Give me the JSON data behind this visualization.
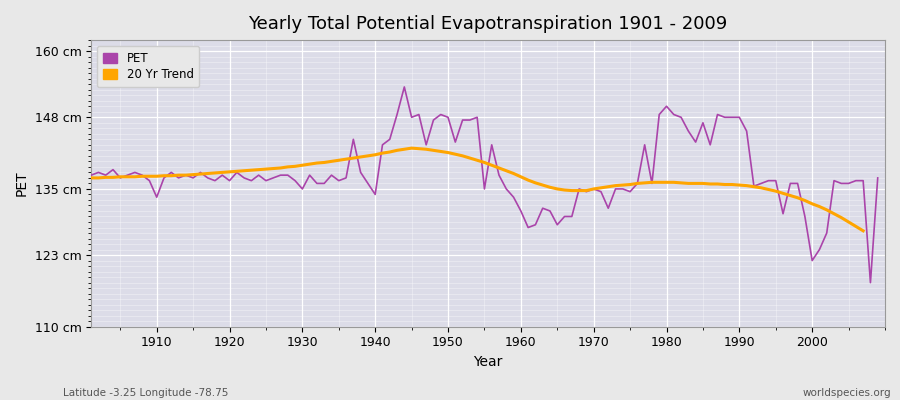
{
  "title": "Yearly Total Potential Evapotranspiration 1901 - 2009",
  "xlabel": "Year",
  "ylabel": "PET",
  "subtitle_left": "Latitude -3.25 Longitude -78.75",
  "subtitle_right": "worldspecies.org",
  "pet_color": "#AA44AA",
  "trend_color": "#FFA500",
  "bg_color": "#E8E8E8",
  "plot_bg_color": "#DCDCE8",
  "ylim": [
    110,
    162
  ],
  "yticks": [
    110,
    123,
    135,
    148,
    160
  ],
  "ytick_labels": [
    "110 cm",
    "123 cm",
    "135 cm",
    "148 cm",
    "160 cm"
  ],
  "xlim": [
    1901,
    2010
  ],
  "xticks": [
    1910,
    1920,
    1930,
    1940,
    1950,
    1960,
    1970,
    1980,
    1990,
    2000
  ],
  "years": [
    1901,
    1902,
    1903,
    1904,
    1905,
    1906,
    1907,
    1908,
    1909,
    1910,
    1911,
    1912,
    1913,
    1914,
    1915,
    1916,
    1917,
    1918,
    1919,
    1920,
    1921,
    1922,
    1923,
    1924,
    1925,
    1926,
    1927,
    1928,
    1929,
    1930,
    1931,
    1932,
    1933,
    1934,
    1935,
    1936,
    1937,
    1938,
    1939,
    1940,
    1941,
    1942,
    1943,
    1944,
    1945,
    1946,
    1947,
    1948,
    1949,
    1950,
    1951,
    1952,
    1953,
    1954,
    1955,
    1956,
    1957,
    1958,
    1959,
    1960,
    1961,
    1962,
    1963,
    1964,
    1965,
    1966,
    1967,
    1968,
    1969,
    1970,
    1971,
    1972,
    1973,
    1974,
    1975,
    1976,
    1977,
    1978,
    1979,
    1980,
    1981,
    1982,
    1983,
    1984,
    1985,
    1986,
    1987,
    1988,
    1989,
    1990,
    1991,
    1992,
    1993,
    1994,
    1995,
    1996,
    1997,
    1998,
    1999,
    2000,
    2001,
    2002,
    2003,
    2004,
    2005,
    2006,
    2007,
    2008,
    2009
  ],
  "pet_values": [
    137.5,
    138.0,
    137.5,
    138.5,
    137.0,
    137.5,
    138.0,
    137.5,
    136.5,
    133.5,
    137.0,
    138.0,
    137.0,
    137.5,
    137.0,
    138.0,
    137.0,
    136.5,
    137.5,
    136.5,
    138.0,
    137.0,
    136.5,
    137.5,
    136.5,
    137.0,
    137.5,
    137.5,
    136.5,
    135.0,
    137.5,
    136.0,
    136.0,
    137.5,
    136.5,
    137.0,
    144.0,
    138.0,
    136.0,
    134.0,
    143.0,
    144.0,
    148.5,
    153.5,
    148.0,
    148.5,
    143.0,
    147.5,
    148.5,
    148.0,
    143.5,
    147.5,
    147.5,
    148.0,
    135.0,
    143.0,
    137.5,
    135.0,
    133.5,
    131.0,
    128.0,
    128.5,
    131.5,
    131.0,
    128.5,
    130.0,
    130.0,
    135.0,
    134.5,
    135.0,
    134.5,
    131.5,
    135.0,
    135.0,
    134.5,
    136.0,
    143.0,
    136.0,
    148.5,
    150.0,
    148.5,
    148.0,
    145.5,
    143.5,
    147.0,
    143.0,
    148.5,
    148.0,
    148.0,
    148.0,
    145.5,
    135.5,
    136.0,
    136.5,
    136.5,
    130.5,
    136.0,
    136.0,
    130.0,
    122.0,
    124.0,
    127.0,
    136.5,
    136.0,
    136.0,
    136.5,
    136.5,
    118.0,
    137.0
  ],
  "trend_values": [
    137.0,
    137.0,
    137.1,
    137.1,
    137.2,
    137.2,
    137.2,
    137.3,
    137.3,
    137.3,
    137.4,
    137.4,
    137.5,
    137.5,
    137.6,
    137.7,
    137.8,
    137.9,
    138.0,
    138.1,
    138.2,
    138.3,
    138.4,
    138.5,
    138.6,
    138.7,
    138.8,
    139.0,
    139.1,
    139.3,
    139.5,
    139.7,
    139.8,
    140.0,
    140.2,
    140.4,
    140.6,
    140.8,
    141.0,
    141.2,
    141.5,
    141.7,
    142.0,
    142.2,
    142.4,
    142.3,
    142.2,
    142.0,
    141.8,
    141.6,
    141.3,
    141.0,
    140.6,
    140.2,
    139.8,
    139.3,
    138.8,
    138.3,
    137.8,
    137.2,
    136.6,
    136.1,
    135.7,
    135.3,
    135.0,
    134.8,
    134.7,
    134.7,
    134.7,
    135.0,
    135.2,
    135.4,
    135.6,
    135.7,
    135.8,
    136.0,
    136.1,
    136.2,
    136.2,
    136.2,
    136.2,
    136.1,
    136.0,
    136.0,
    136.0,
    135.9,
    135.9,
    135.8,
    135.8,
    135.7,
    135.6,
    135.4,
    135.2,
    134.9,
    134.6,
    134.2,
    133.8,
    133.4,
    132.9,
    132.3,
    131.8,
    131.2,
    130.5,
    129.8,
    129.0,
    128.2,
    127.4,
    null,
    null
  ]
}
